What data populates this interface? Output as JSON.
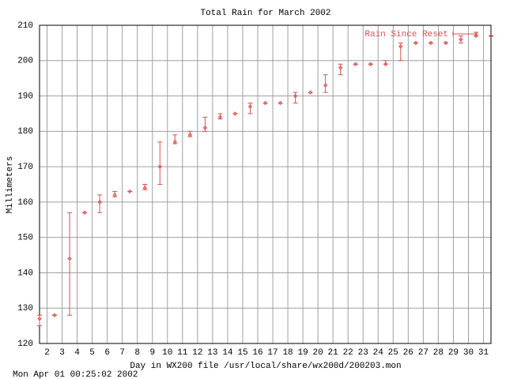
{
  "chart_data": {
    "type": "errorbar",
    "title": "Total Rain for March 2002",
    "xlabel": "Day in WX200 file /usr/local/share/wx200d/200203.mon",
    "ylabel": "Millimeters",
    "timestamp": "Mon Apr 01 00:25:02 2002",
    "x": [
      1.5,
      2.5,
      3.5,
      4.5,
      5.5,
      6.5,
      7.5,
      8.5,
      9.5,
      10.5,
      11.5,
      12.5,
      13.5,
      14.5,
      15.5,
      16.5,
      17.5,
      18.5,
      19.5,
      20.5,
      21.5,
      22.5,
      23.5,
      24.5,
      25.5,
      26.5,
      27.5,
      28.5,
      29.5,
      30.5,
      31.5
    ],
    "series": [
      {
        "name": "Rain Since Reset",
        "color": "#e05050",
        "values": [
          127,
          128,
          144,
          157,
          160,
          162,
          163,
          164,
          170,
          177,
          179,
          181,
          184,
          185,
          187,
          188,
          188,
          190,
          191,
          193,
          198,
          199,
          199,
          199,
          204,
          205,
          205,
          205,
          206,
          207,
          207
        ],
        "low": [
          125,
          128,
          128,
          157,
          157,
          161.5,
          163,
          163.5,
          165,
          176.5,
          178.5,
          180,
          183.5,
          185,
          185,
          188,
          188,
          188,
          191,
          191,
          196,
          199,
          199,
          199,
          200,
          205,
          205,
          205,
          205,
          207,
          207
        ],
        "high": [
          128,
          128,
          157,
          157,
          162,
          163,
          163,
          165,
          177,
          179,
          180,
          184,
          185,
          185,
          188,
          188,
          188,
          191,
          191,
          196,
          199,
          199,
          199,
          200,
          205,
          205,
          205,
          205,
          207,
          208,
          207
        ]
      }
    ],
    "xlim": [
      1.5,
      31.5
    ],
    "ylim": [
      120,
      210
    ],
    "xticks": [
      2,
      3,
      4,
      5,
      6,
      7,
      8,
      9,
      10,
      11,
      12,
      13,
      14,
      15,
      16,
      17,
      18,
      19,
      20,
      21,
      22,
      23,
      24,
      25,
      26,
      27,
      28,
      29,
      30,
      31
    ],
    "yticks": [
      120,
      130,
      140,
      150,
      160,
      170,
      180,
      190,
      200,
      210
    ],
    "grid": true,
    "legend": "top-right"
  }
}
